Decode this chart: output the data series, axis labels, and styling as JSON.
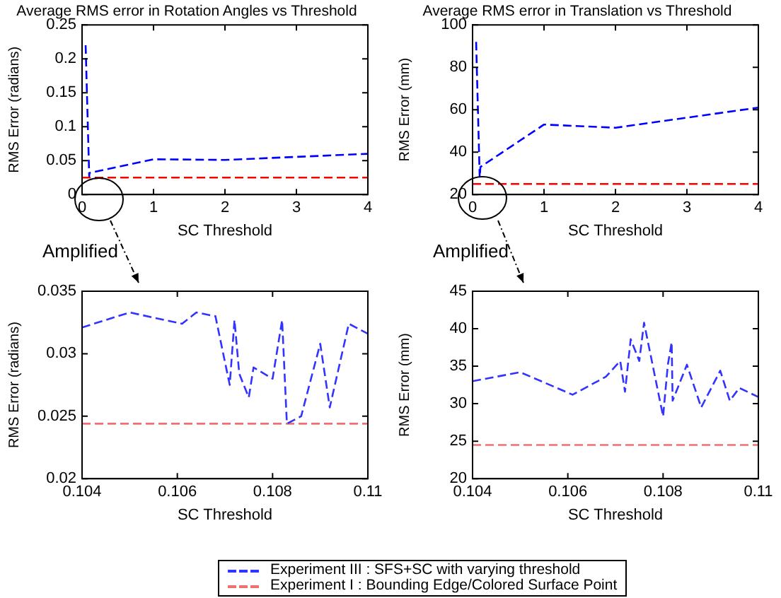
{
  "chart_data": [
    {
      "type": "line",
      "title": "Average RMS error in Rotation Angles vs Threshold",
      "xlabel": "SC Threshold",
      "ylabel": "RMS Error (radians)",
      "xlim": [
        0,
        4
      ],
      "xticks": [
        0,
        1,
        2,
        3,
        4
      ],
      "ylim": [
        0,
        0.25
      ],
      "yticks": [
        0,
        0.05,
        0.1,
        0.15,
        0.2,
        0.25
      ],
      "grid": false,
      "line_style": "dashed",
      "annotations": [
        "Amplified"
      ],
      "series": [
        {
          "color": "#0000ff",
          "x": [
            0.05,
            0.1,
            0.104,
            0.11,
            1,
            2,
            4
          ],
          "values": [
            0.22,
            0.027,
            0.032,
            0.032,
            0.052,
            0.051,
            0.06
          ]
        },
        {
          "color": "#ff0000",
          "x": [
            0,
            4
          ],
          "values": [
            0.025,
            0.025
          ]
        }
      ]
    },
    {
      "type": "line",
      "title": "Average RMS error in Translation vs Threshold",
      "xlabel": "SC Threshold",
      "ylabel": "RMS Error (mm)",
      "xlim": [
        0,
        4
      ],
      "xticks": [
        0,
        1,
        2,
        3,
        4
      ],
      "ylim": [
        20,
        100
      ],
      "yticks": [
        20,
        40,
        60,
        80,
        100
      ],
      "grid": false,
      "line_style": "dashed",
      "annotations": [
        "Amplified"
      ],
      "series": [
        {
          "color": "#0000ff",
          "x": [
            0.05,
            0.1,
            0.11,
            1,
            2,
            4
          ],
          "values": [
            92,
            28,
            33,
            53,
            51.5,
            61
          ]
        },
        {
          "color": "#ff0000",
          "x": [
            0,
            4
          ],
          "values": [
            25,
            25
          ]
        }
      ]
    },
    {
      "type": "line",
      "xlabel": "SC Threshold",
      "ylabel": "RMS Error (radians)",
      "xlim": [
        0.104,
        0.11
      ],
      "xticks": [
        0.104,
        0.106,
        0.108,
        0.11
      ],
      "ylim": [
        0.02,
        0.035
      ],
      "yticks": [
        0.02,
        0.025,
        0.03,
        0.035
      ],
      "grid": false,
      "line_style": "dashed",
      "series": [
        {
          "color": "#3333ff",
          "x": [
            0.104,
            0.105,
            0.1061,
            0.1064,
            0.1068,
            0.1071,
            0.1072,
            0.1073,
            0.1075,
            0.1076,
            0.108,
            0.1082,
            0.1083,
            0.1086,
            0.109,
            0.1092,
            0.1096,
            0.11
          ],
          "values": [
            0.0321,
            0.0333,
            0.0324,
            0.0333,
            0.033,
            0.0275,
            0.0327,
            0.0284,
            0.0265,
            0.0289,
            0.028,
            0.0327,
            0.0244,
            0.025,
            0.0308,
            0.0257,
            0.0324,
            0.0316
          ]
        },
        {
          "color": "#f07070",
          "x": [
            0.104,
            0.11
          ],
          "values": [
            0.0244,
            0.0244
          ]
        }
      ]
    },
    {
      "type": "line",
      "xlabel": "SC Threshold",
      "ylabel": "RMS Error (mm)",
      "xlim": [
        0.104,
        0.11
      ],
      "xticks": [
        0.104,
        0.106,
        0.108,
        0.11
      ],
      "ylim": [
        20,
        45
      ],
      "yticks": [
        20,
        25,
        30,
        35,
        40,
        45
      ],
      "grid": false,
      "line_style": "dashed",
      "legend": "bottom",
      "series": [
        {
          "name": "Experiment III : SFS+SC with varying threshold",
          "color": "#3333ff",
          "x": [
            0.104,
            0.105,
            0.1061,
            0.1068,
            0.1071,
            0.1072,
            0.10732,
            0.1075,
            0.1076,
            0.108,
            0.1081,
            0.10818,
            0.1082,
            0.1085,
            0.1088,
            0.1092,
            0.1094,
            0.1096,
            0.11
          ],
          "values": [
            33,
            34.2,
            31.2,
            33.6,
            35.7,
            31.6,
            38.6,
            35.7,
            40.8,
            28.3,
            35.2,
            38.2,
            30.4,
            35.2,
            29.5,
            34.4,
            30.4,
            32.1,
            30.9
          ]
        },
        {
          "name": "Experiment I : Bounding Edge/Colored Surface Point",
          "color": "#f07070",
          "x": [
            0.104,
            0.11
          ],
          "values": [
            24.5,
            24.5
          ]
        }
      ]
    }
  ]
}
